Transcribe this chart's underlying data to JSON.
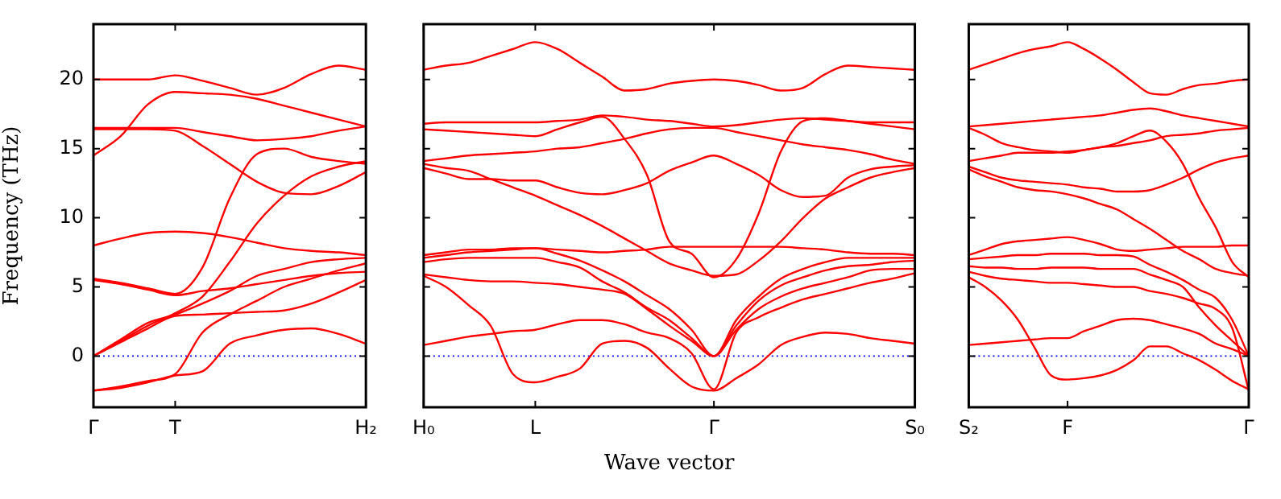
{
  "chart_data": [
    {
      "type": "line",
      "ylabel": "Frequency (THz)",
      "categories": [
        "Γ",
        null,
        null,
        "T",
        null,
        null,
        null,
        null,
        null,
        null,
        "H₂"
      ],
      "ylim": [
        -3.7,
        24
      ],
      "yticks": [
        0,
        5,
        10,
        15,
        20
      ],
      "grid": false,
      "legend": false,
      "marker": "none",
      "line_style": "solid",
      "ref_lines": [
        {
          "axis": "y",
          "value": 0,
          "color": "#0000ff",
          "line_style": "dotted"
        }
      ],
      "series": [
        {
          "color": "#ff0000",
          "values": [
            20.0,
            20.0,
            20.0,
            20.3,
            19.9,
            19.4,
            18.9,
            19.4,
            20.4,
            21.0,
            20.7
          ]
        },
        {
          "color": "#ff0000",
          "values": [
            14.5,
            15.9,
            18.2,
            19.1,
            19.0,
            18.9,
            18.6,
            18.1,
            17.6,
            17.1,
            16.6
          ]
        },
        {
          "color": "#ff0000",
          "values": [
            16.5,
            16.5,
            16.5,
            16.5,
            16.2,
            15.9,
            15.6,
            15.7,
            15.9,
            16.3,
            16.6
          ]
        },
        {
          "color": "#ff0000",
          "values": [
            16.4,
            16.4,
            16.4,
            16.3,
            15.2,
            13.9,
            12.6,
            11.8,
            11.7,
            12.3,
            13.3
          ]
        },
        {
          "color": "#ff0000",
          "values": [
            5.6,
            5.3,
            4.9,
            4.5,
            6.4,
            11.4,
            14.6,
            15.0,
            14.4,
            14.1,
            13.9
          ]
        },
        {
          "color": "#ff0000",
          "values": [
            5.5,
            5.2,
            4.8,
            4.4,
            4.7,
            4.9,
            5.2,
            5.5,
            5.8,
            6.0,
            6.1
          ]
        },
        {
          "color": "#ff0000",
          "values": [
            0,
            1.1,
            2.2,
            3.1,
            4.3,
            6.8,
            9.6,
            11.6,
            13.0,
            13.7,
            14.1
          ]
        },
        {
          "color": "#ff0000",
          "values": [
            8.0,
            8.5,
            8.9,
            9.0,
            8.9,
            8.6,
            8.2,
            7.8,
            7.6,
            7.5,
            7.3
          ]
        },
        {
          "color": "#ff0000",
          "values": [
            0,
            1.2,
            2.4,
            3.0,
            3.8,
            4.7,
            5.8,
            6.3,
            6.8,
            7.0,
            7.1
          ]
        },
        {
          "color": "#ff0000",
          "values": [
            0,
            1.0,
            2.0,
            2.9,
            3.0,
            3.1,
            3.2,
            3.3,
            3.8,
            4.6,
            5.5
          ]
        },
        {
          "color": "#ff0000",
          "values": [
            -2.5,
            -2.3,
            -1.9,
            -1.4,
            -1.1,
            0.9,
            1.5,
            1.9,
            2.0,
            1.6,
            0.9
          ]
        },
        {
          "color": "#ff0000",
          "values": [
            -2.5,
            -2.2,
            -1.8,
            -1.3,
            1.7,
            3.0,
            4.0,
            5.0,
            5.6,
            6.2,
            6.7
          ]
        }
      ]
    },
    {
      "type": "line",
      "xlabel": "Wave vector",
      "categories": [
        "H₀",
        null,
        null,
        null,
        null,
        "L",
        null,
        null,
        null,
        null,
        null,
        null,
        null,
        "Γ",
        null,
        null,
        null,
        null,
        null,
        null,
        null,
        null,
        "S₀"
      ],
      "ylim": [
        -3.7,
        24
      ],
      "yticks": [
        0,
        5,
        10,
        15,
        20
      ],
      "tick_labels": "x",
      "grid": false,
      "legend": false,
      "marker": "none",
      "line_style": "solid",
      "ref_lines": [
        {
          "axis": "y",
          "value": 0,
          "color": "#0000ff",
          "line_style": "dotted"
        }
      ],
      "series": [
        {
          "color": "#ff0000",
          "values": [
            20.7,
            21.0,
            21.2,
            21.7,
            22.2,
            22.7,
            22.2,
            21.2,
            20.2,
            19.2,
            19.3,
            19.7,
            19.9,
            20.0,
            19.9,
            19.6,
            19.2,
            19.4,
            20.4,
            21.0,
            20.9,
            20.8,
            20.7
          ]
        },
        {
          "color": "#ff0000",
          "values": [
            16.8,
            16.9,
            16.9,
            16.9,
            16.9,
            16.9,
            17.0,
            17.1,
            17.4,
            17.3,
            17.1,
            17.0,
            16.8,
            16.6,
            16.7,
            16.9,
            17.1,
            17.2,
            17.1,
            17.0,
            16.9,
            16.9,
            16.9
          ]
        },
        {
          "color": "#ff0000",
          "values": [
            16.4,
            16.3,
            16.2,
            16.1,
            16.0,
            15.9,
            16.4,
            16.9,
            17.3,
            15.7,
            13.1,
            8.3,
            7.4,
            5.7,
            7.0,
            10.3,
            14.8,
            17.0,
            17.2,
            17.0,
            16.8,
            16.6,
            16.4
          ]
        },
        {
          "color": "#ff0000",
          "values": [
            14.1,
            14.3,
            14.5,
            14.6,
            14.7,
            14.8,
            15.0,
            15.1,
            15.4,
            15.7,
            16.1,
            16.4,
            16.5,
            16.5,
            16.2,
            15.9,
            15.6,
            15.3,
            15.1,
            14.9,
            14.6,
            14.2,
            13.9
          ]
        },
        {
          "color": "#ff0000",
          "values": [
            13.6,
            13.2,
            12.8,
            12.8,
            12.7,
            12.7,
            12.2,
            11.8,
            11.7,
            12.0,
            12.5,
            13.4,
            14.0,
            14.5,
            13.9,
            13.1,
            12.0,
            11.5,
            11.6,
            12.9,
            13.5,
            13.7,
            13.8
          ]
        },
        {
          "color": "#ff0000",
          "values": [
            13.9,
            13.6,
            13.4,
            12.8,
            12.2,
            11.6,
            10.9,
            10.2,
            9.4,
            8.5,
            7.6,
            6.7,
            6.2,
            5.8,
            5.9,
            6.9,
            8.3,
            10.0,
            11.4,
            12.2,
            12.9,
            13.3,
            13.6
          ]
        },
        {
          "color": "#ff0000",
          "values": [
            7.3,
            7.5,
            7.7,
            7.7,
            7.8,
            7.8,
            7.7,
            7.6,
            7.5,
            7.6,
            7.7,
            7.9,
            7.9,
            7.9,
            7.9,
            7.9,
            7.9,
            7.8,
            7.7,
            7.5,
            7.4,
            7.4,
            7.3
          ]
        },
        {
          "color": "#ff0000",
          "values": [
            7.1,
            7.3,
            7.5,
            7.6,
            7.7,
            7.8,
            7.4,
            6.9,
            6.2,
            5.4,
            4.4,
            3.4,
            1.9,
            0,
            2.6,
            4.3,
            5.6,
            6.3,
            6.8,
            7.1,
            7.1,
            7.1,
            7.1
          ]
        },
        {
          "color": "#ff0000",
          "values": [
            6.8,
            7.0,
            7.1,
            7.1,
            7.1,
            7.1,
            6.8,
            6.4,
            5.4,
            4.6,
            3.5,
            2.6,
            1.3,
            0,
            2.2,
            4.0,
            5.1,
            5.7,
            6.2,
            6.5,
            6.6,
            6.8,
            6.9
          ]
        },
        {
          "color": "#ff0000",
          "values": [
            5.9,
            5.7,
            5.5,
            5.4,
            5.4,
            5.3,
            5.2,
            5.0,
            4.8,
            4.5,
            3.4,
            2.2,
            1.1,
            0,
            1.9,
            3.4,
            4.3,
            4.9,
            5.3,
            5.7,
            6.2,
            6.3,
            6.3
          ]
        },
        {
          "color": "#ff0000",
          "values": [
            5.8,
            5.0,
            3.7,
            2.2,
            -1.3,
            -1.9,
            -1.5,
            -0.9,
            0.9,
            1.1,
            0.6,
            -0.9,
            -2.2,
            -2.5,
            -1.6,
            -0.6,
            0.8,
            1.4,
            1.7,
            1.6,
            1.3,
            1.1,
            0.9
          ]
        },
        {
          "color": "#ff0000",
          "values": [
            0.8,
            1.1,
            1.4,
            1.6,
            1.8,
            1.9,
            2.3,
            2.6,
            2.6,
            2.3,
            1.7,
            1.3,
            0.2,
            -2.4,
            1.7,
            2.8,
            3.5,
            4.1,
            4.5,
            4.9,
            5.3,
            5.6,
            6.0
          ]
        }
      ]
    },
    {
      "type": "line",
      "categories": [
        "S₂",
        null,
        null,
        null,
        null,
        null,
        "F",
        null,
        null,
        null,
        null,
        null,
        null,
        null,
        null,
        null,
        null,
        "Γ"
      ],
      "ylim": [
        -3.7,
        24
      ],
      "yticks": [
        0,
        5,
        10,
        15,
        20
      ],
      "tick_labels": "x",
      "grid": false,
      "legend": false,
      "marker": "none",
      "line_style": "solid",
      "ref_lines": [
        {
          "axis": "y",
          "value": 0,
          "color": "#0000ff",
          "line_style": "dotted"
        }
      ],
      "series": [
        {
          "color": "#ff0000",
          "values": [
            20.7,
            21.1,
            21.5,
            21.9,
            22.2,
            22.4,
            22.7,
            22.2,
            21.5,
            20.7,
            19.8,
            19.0,
            18.9,
            19.3,
            19.6,
            19.7,
            19.9,
            20.0
          ]
        },
        {
          "color": "#ff0000",
          "values": [
            16.6,
            16.7,
            16.8,
            16.9,
            17.0,
            17.1,
            17.2,
            17.3,
            17.4,
            17.6,
            17.8,
            17.9,
            17.7,
            17.4,
            17.2,
            17.0,
            16.8,
            16.6
          ]
        },
        {
          "color": "#ff0000",
          "values": [
            16.5,
            16.0,
            15.4,
            15.1,
            14.9,
            14.8,
            14.7,
            14.9,
            15.1,
            15.4,
            15.9,
            16.3,
            15.5,
            13.9,
            11.4,
            9.3,
            6.8,
            5.7
          ]
        },
        {
          "color": "#ff0000",
          "values": [
            14.1,
            14.3,
            14.5,
            14.7,
            14.7,
            14.7,
            14.8,
            14.9,
            15.1,
            15.2,
            15.4,
            15.6,
            15.9,
            16.0,
            16.1,
            16.3,
            16.4,
            16.5
          ]
        },
        {
          "color": "#ff0000",
          "values": [
            13.7,
            13.3,
            12.9,
            12.7,
            12.6,
            12.5,
            12.4,
            12.2,
            12.1,
            11.9,
            11.9,
            12.0,
            12.4,
            12.9,
            13.5,
            14.0,
            14.3,
            14.5
          ]
        },
        {
          "color": "#ff0000",
          "values": [
            13.5,
            13.0,
            12.6,
            12.2,
            12.0,
            11.9,
            11.7,
            11.4,
            11.0,
            10.6,
            9.9,
            9.2,
            8.4,
            7.6,
            7.0,
            6.3,
            6.0,
            5.8
          ]
        },
        {
          "color": "#ff0000",
          "values": [
            7.3,
            7.7,
            8.1,
            8.3,
            8.4,
            8.5,
            8.6,
            8.4,
            8.1,
            7.7,
            7.6,
            7.7,
            7.8,
            7.9,
            7.9,
            7.9,
            8.0,
            8.0
          ]
        },
        {
          "color": "#ff0000",
          "values": [
            7.0,
            7.1,
            7.2,
            7.3,
            7.3,
            7.4,
            7.4,
            7.4,
            7.3,
            7.3,
            7.2,
            6.6,
            6.1,
            5.5,
            4.8,
            4.2,
            2.6,
            0
          ]
        },
        {
          "color": "#ff0000",
          "values": [
            6.5,
            6.4,
            6.4,
            6.3,
            6.3,
            6.4,
            6.4,
            6.4,
            6.3,
            6.3,
            6.3,
            5.9,
            5.5,
            5.0,
            3.5,
            2.2,
            1.1,
            0
          ]
        },
        {
          "color": "#ff0000",
          "values": [
            6.1,
            5.8,
            5.6,
            5.5,
            5.4,
            5.3,
            5.3,
            5.2,
            5.1,
            5.0,
            5.0,
            4.7,
            4.5,
            4.2,
            3.8,
            3.4,
            2.0,
            -2.5
          ]
        },
        {
          "color": "#ff0000",
          "values": [
            5.7,
            5.0,
            4.0,
            2.6,
            0.6,
            -1.4,
            -1.7,
            -1.6,
            -1.4,
            -1.0,
            -0.3,
            0.7,
            0.7,
            0.2,
            -0.3,
            -1.0,
            -1.8,
            -2.4
          ]
        },
        {
          "color": "#ff0000",
          "values": [
            0.8,
            0.9,
            1.0,
            1.1,
            1.2,
            1.3,
            1.3,
            1.8,
            2.2,
            2.6,
            2.7,
            2.6,
            2.3,
            2.0,
            1.6,
            0.9,
            0.5,
            0
          ]
        }
      ]
    }
  ]
}
